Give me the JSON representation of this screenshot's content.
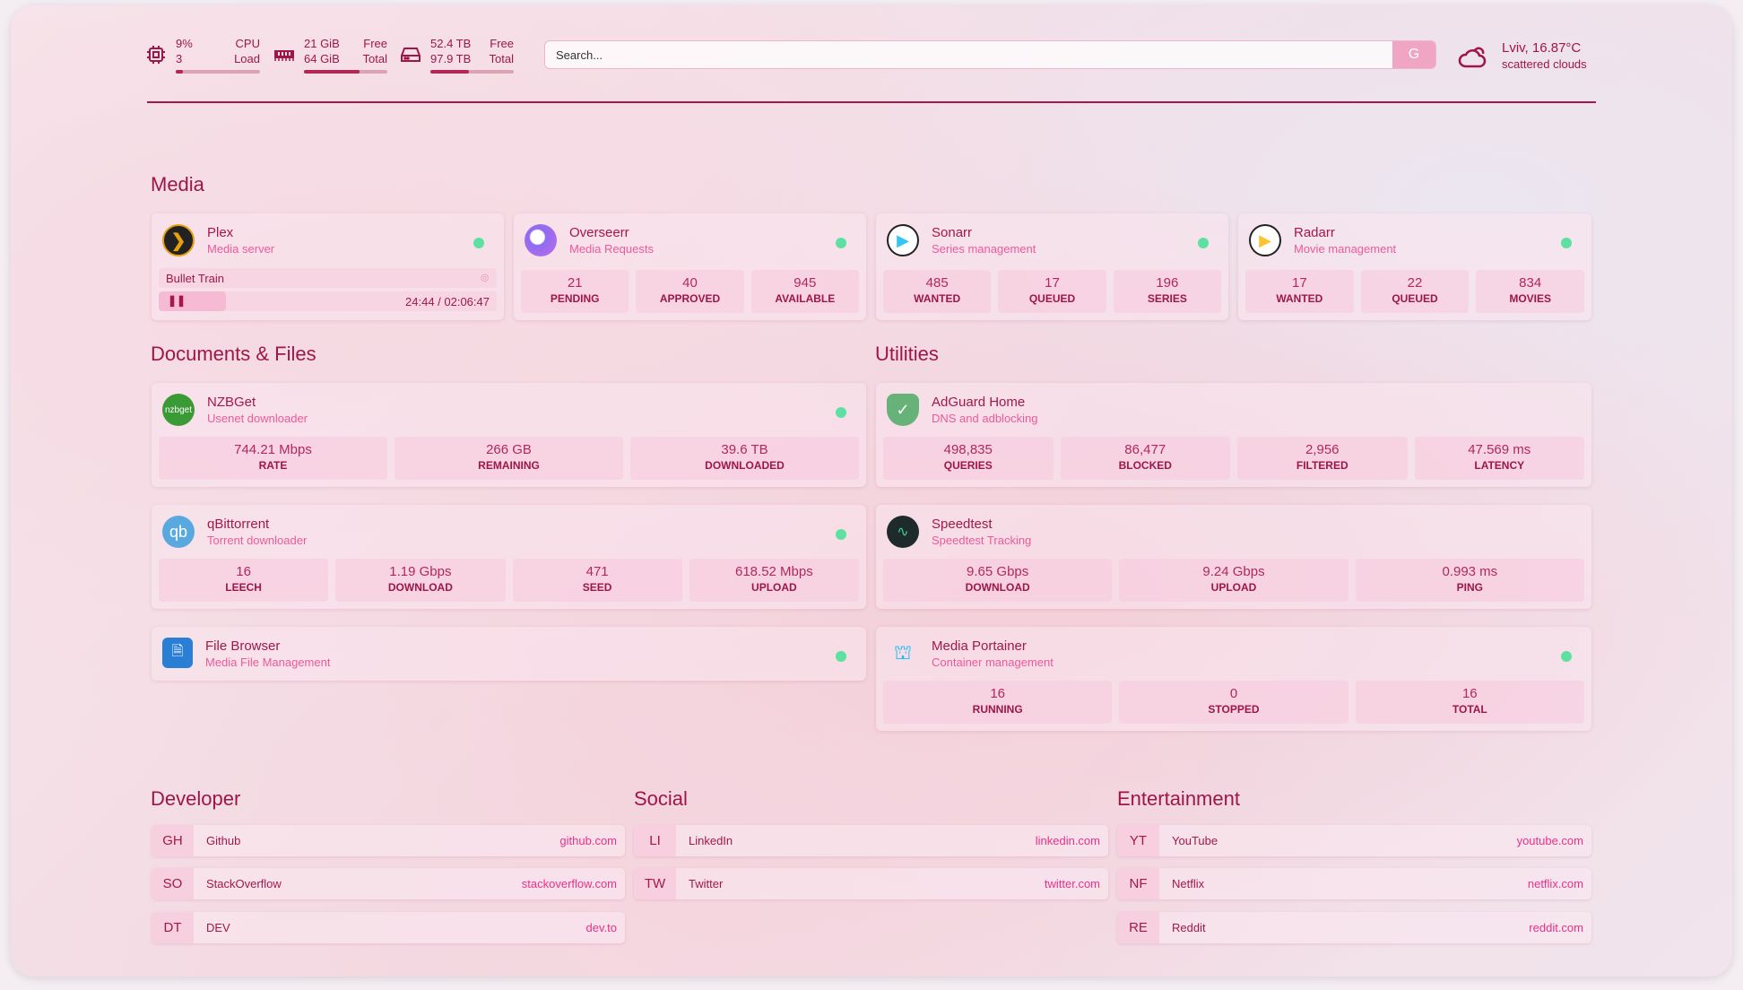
{
  "header": {
    "cpu": {
      "value": "9%",
      "sub": "3",
      "label": "CPU",
      "sublabel": "Load",
      "percent": 9,
      "icon": "cpu-icon"
    },
    "memory": {
      "value": "21 GiB",
      "sub": "64 GiB",
      "label": "Free",
      "sublabel": "Total",
      "percent": 67,
      "icon": "memory-icon"
    },
    "disk": {
      "value": "52.4 TB",
      "sub": "97.9 TB",
      "label": "Free",
      "sublabel": "Total",
      "percent": 46,
      "icon": "hard-drive-icon"
    },
    "search": {
      "placeholder": "Search...",
      "button": "G"
    },
    "weather": {
      "location": "Lviv, 16.87°C",
      "description": "scattered clouds",
      "icon": "cloud-sun-icon"
    }
  },
  "sections": {
    "media": "Media",
    "documents": "Documents & Files",
    "utilities": "Utilities",
    "developer": "Developer",
    "social": "Social",
    "entertainment": "Entertainment"
  },
  "media": [
    {
      "title": "Plex",
      "subtitle": "Media server",
      "now_playing": {
        "title": "Bullet Train",
        "time": "24:44 / 02:06:47",
        "progress": 20
      }
    },
    {
      "title": "Overseerr",
      "subtitle": "Media Requests",
      "stats": [
        {
          "v": "21",
          "l": "PENDING"
        },
        {
          "v": "40",
          "l": "APPROVED"
        },
        {
          "v": "945",
          "l": "AVAILABLE"
        }
      ]
    },
    {
      "title": "Sonarr",
      "subtitle": "Series management",
      "stats": [
        {
          "v": "485",
          "l": "WANTED"
        },
        {
          "v": "17",
          "l": "QUEUED"
        },
        {
          "v": "196",
          "l": "SERIES"
        }
      ]
    },
    {
      "title": "Radarr",
      "subtitle": "Movie management",
      "stats": [
        {
          "v": "17",
          "l": "WANTED"
        },
        {
          "v": "22",
          "l": "QUEUED"
        },
        {
          "v": "834",
          "l": "MOVIES"
        }
      ]
    }
  ],
  "documents": [
    {
      "title": "NZBGet",
      "subtitle": "Usenet downloader",
      "logo": "nzbget",
      "stats": [
        {
          "v": "744.21 Mbps",
          "l": "RATE"
        },
        {
          "v": "266 GB",
          "l": "REMAINING"
        },
        {
          "v": "39.6 TB",
          "l": "DOWNLOADED"
        }
      ]
    },
    {
      "title": "qBittorrent",
      "subtitle": "Torrent downloader",
      "logo": "qb",
      "stats": [
        {
          "v": "16",
          "l": "LEECH"
        },
        {
          "v": "1.19 Gbps",
          "l": "DOWNLOAD"
        },
        {
          "v": "471",
          "l": "SEED"
        },
        {
          "v": "618.52 Mbps",
          "l": "UPLOAD"
        }
      ]
    },
    {
      "title": "File Browser",
      "subtitle": "Media File Management"
    }
  ],
  "utilities": [
    {
      "title": "AdGuard Home",
      "subtitle": "DNS and adblocking",
      "stats": [
        {
          "v": "498,835",
          "l": "QUERIES"
        },
        {
          "v": "86,477",
          "l": "BLOCKED"
        },
        {
          "v": "2,956",
          "l": "FILTERED"
        },
        {
          "v": "47.569 ms",
          "l": "LATENCY"
        }
      ]
    },
    {
      "title": "Speedtest",
      "subtitle": "Speedtest Tracking",
      "stats": [
        {
          "v": "9.65 Gbps",
          "l": "DOWNLOAD"
        },
        {
          "v": "9.24 Gbps",
          "l": "UPLOAD"
        },
        {
          "v": "0.993 ms",
          "l": "PING"
        }
      ]
    },
    {
      "title": "Media Portainer",
      "subtitle": "Container management",
      "stats": [
        {
          "v": "16",
          "l": "RUNNING"
        },
        {
          "v": "0",
          "l": "STOPPED"
        },
        {
          "v": "16",
          "l": "TOTAL"
        }
      ]
    }
  ],
  "bookmarks": {
    "developer": [
      {
        "abbr": "GH",
        "name": "Github",
        "url": "github.com"
      },
      {
        "abbr": "SO",
        "name": "StackOverflow",
        "url": "stackoverflow.com"
      },
      {
        "abbr": "DT",
        "name": "DEV",
        "url": "dev.to"
      }
    ],
    "social": [
      {
        "abbr": "LI",
        "name": "LinkedIn",
        "url": "linkedin.com"
      },
      {
        "abbr": "TW",
        "name": "Twitter",
        "url": "twitter.com"
      }
    ],
    "entertainment": [
      {
        "abbr": "YT",
        "name": "YouTube",
        "url": "youtube.com"
      },
      {
        "abbr": "NF",
        "name": "Netflix",
        "url": "netflix.com"
      },
      {
        "abbr": "RE",
        "name": "Reddit",
        "url": "reddit.com"
      }
    ]
  },
  "colors": {
    "accent": "#a3174a",
    "subtitle": "#ec5a9b",
    "status_online": "#5ee0a0",
    "link": "#e8318a"
  }
}
